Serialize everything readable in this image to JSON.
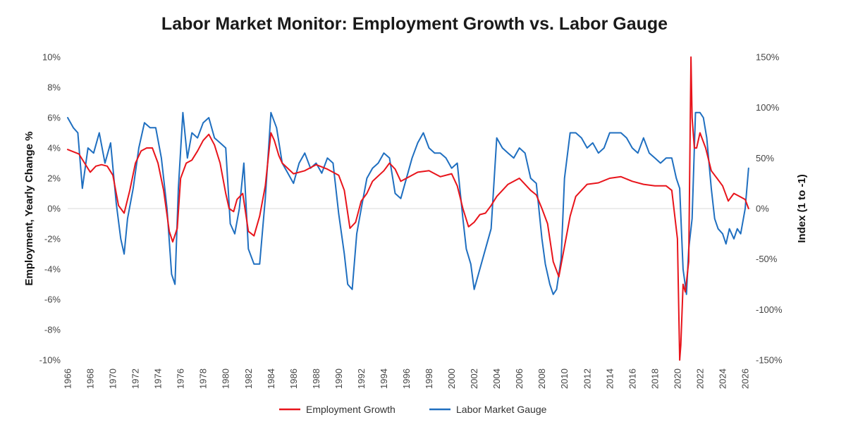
{
  "chart_data": {
    "type": "line",
    "title": "Labor Market Monitor: Employment Growth vs. Labor Gauge",
    "ylabel": "Employment, Yearly Change %",
    "y2label": "Index (1 to -1)",
    "ylim": [
      -10,
      10
    ],
    "y2lim": [
      -150,
      150
    ],
    "xlim": [
      1966,
      2026.5
    ],
    "grid": false,
    "legend_position": "bottom-center",
    "x_ticks": [
      "1966",
      "1968",
      "1970",
      "1972",
      "1974",
      "1976",
      "1978",
      "1980",
      "1982",
      "1984",
      "1986",
      "1988",
      "1990",
      "1992",
      "1994",
      "1996",
      "1998",
      "2000",
      "2002",
      "2004",
      "2006",
      "2008",
      "2010",
      "2012",
      "2014",
      "2016",
      "2018",
      "2020",
      "2022",
      "2024",
      "2026"
    ],
    "y_ticks": [
      "10%",
      "8%",
      "6%",
      "4%",
      "2%",
      "0%",
      "-2%",
      "-4%",
      "-6%",
      "-8%",
      "-10%"
    ],
    "y2_ticks": [
      "150%",
      "100%",
      "50%",
      "0%",
      "-50%",
      "-100%",
      "-150%"
    ],
    "series": [
      {
        "name": "Employment Growth",
        "axis": "left",
        "color": "#e8141b",
        "x": [
          1966.0,
          1967.0,
          1967.5,
          1968.0,
          1968.5,
          1969.0,
          1969.5,
          1970.0,
          1970.5,
          1971.0,
          1971.5,
          1972.0,
          1972.5,
          1973.0,
          1973.5,
          1974.0,
          1974.5,
          1975.0,
          1975.3,
          1975.7,
          1976.0,
          1976.5,
          1977.0,
          1977.5,
          1978.0,
          1978.5,
          1979.0,
          1979.5,
          1980.0,
          1980.3,
          1980.7,
          1981.0,
          1981.5,
          1982.0,
          1982.5,
          1983.0,
          1983.5,
          1984.0,
          1984.3,
          1984.7,
          1985.0,
          1986.0,
          1987.0,
          1988.0,
          1989.0,
          1990.0,
          1990.5,
          1991.0,
          1991.5,
          1992.0,
          1992.5,
          1993.0,
          1994.0,
          1994.5,
          1995.0,
          1995.5,
          1996.0,
          1997.0,
          1998.0,
          1999.0,
          2000.0,
          2000.5,
          2001.0,
          2001.5,
          2002.0,
          2002.5,
          2003.0,
          2003.5,
          2004.0,
          2005.0,
          2006.0,
          2006.5,
          2007.0,
          2007.5,
          2008.0,
          2008.5,
          2009.0,
          2009.5,
          2010.0,
          2010.5,
          2011.0,
          2012.0,
          2013.0,
          2014.0,
          2015.0,
          2016.0,
          2017.0,
          2018.0,
          2019.0,
          2019.5,
          2020.0,
          2020.2,
          2020.3,
          2020.5,
          2020.7,
          2021.0,
          2021.2,
          2021.3,
          2021.5,
          2021.7,
          2022.0,
          2022.5,
          2023.0,
          2023.5,
          2024.0,
          2024.5,
          2025.0,
          2025.5,
          2026.0,
          2026.3
        ],
        "values": [
          3.9,
          3.6,
          3.0,
          2.4,
          2.8,
          2.9,
          2.8,
          2.2,
          0.2,
          -0.3,
          1.2,
          3.0,
          3.8,
          4.0,
          4.0,
          3.0,
          1.2,
          -1.5,
          -2.2,
          -1.3,
          2.0,
          3.0,
          3.2,
          3.8,
          4.5,
          4.9,
          4.2,
          3.0,
          1.0,
          0.0,
          -0.2,
          0.6,
          1.0,
          -1.5,
          -1.8,
          -0.5,
          1.5,
          5.0,
          4.5,
          3.5,
          3.0,
          2.3,
          2.5,
          2.9,
          2.6,
          2.2,
          1.2,
          -1.3,
          -0.9,
          0.5,
          1.0,
          1.8,
          2.5,
          3.0,
          2.6,
          1.8,
          2.0,
          2.4,
          2.5,
          2.1,
          2.3,
          1.5,
          0.0,
          -1.2,
          -0.9,
          -0.4,
          -0.3,
          0.2,
          0.8,
          1.6,
          2.0,
          1.6,
          1.2,
          0.9,
          0.0,
          -1.0,
          -3.5,
          -4.5,
          -2.5,
          -0.5,
          0.8,
          1.6,
          1.7,
          2.0,
          2.1,
          1.8,
          1.6,
          1.5,
          1.5,
          1.2,
          -2.0,
          -10.0,
          -9.0,
          -5.0,
          -5.5,
          -3.5,
          10.0,
          6.0,
          4.0,
          4.0,
          5.0,
          4.0,
          2.5,
          2.0,
          1.5,
          0.5,
          1.0,
          0.8,
          0.6,
          0.0
        ]
      },
      {
        "name": "Labor Market Gauge",
        "axis": "right",
        "color": "#1f6fc0",
        "x": [
          1966.0,
          1966.5,
          1966.9,
          1967.3,
          1967.8,
          1968.3,
          1968.8,
          1969.3,
          1969.8,
          1970.3,
          1970.7,
          1971.0,
          1971.3,
          1971.8,
          1972.3,
          1972.8,
          1973.3,
          1973.8,
          1974.3,
          1974.8,
          1975.2,
          1975.5,
          1975.8,
          1976.2,
          1976.6,
          1977.0,
          1977.5,
          1978.0,
          1978.5,
          1979.0,
          1979.5,
          1980.0,
          1980.4,
          1980.8,
          1981.2,
          1981.6,
          1982.0,
          1982.5,
          1983.0,
          1983.5,
          1984.0,
          1984.5,
          1985.0,
          1985.5,
          1986.0,
          1986.5,
          1987.0,
          1987.5,
          1988.0,
          1988.5,
          1989.0,
          1989.5,
          1990.0,
          1990.5,
          1990.8,
          1991.2,
          1991.6,
          1992.0,
          1992.5,
          1993.0,
          1993.5,
          1994.0,
          1994.5,
          1995.0,
          1995.5,
          1996.0,
          1996.5,
          1997.0,
          1997.5,
          1998.0,
          1998.5,
          1999.0,
          1999.5,
          2000.0,
          2000.5,
          2001.0,
          2001.3,
          2001.7,
          2002.0,
          2002.5,
          2003.0,
          2003.5,
          2004.0,
          2004.5,
          2005.0,
          2005.5,
          2006.0,
          2006.5,
          2007.0,
          2007.5,
          2008.0,
          2008.3,
          2008.7,
          2009.0,
          2009.3,
          2009.7,
          2010.0,
          2010.5,
          2011.0,
          2011.5,
          2012.0,
          2012.5,
          2013.0,
          2013.5,
          2014.0,
          2014.5,
          2015.0,
          2015.5,
          2016.0,
          2016.5,
          2017.0,
          2017.5,
          2018.0,
          2018.5,
          2019.0,
          2019.5,
          2019.9,
          2020.2,
          2020.5,
          2020.8,
          2021.0,
          2021.3,
          2021.6,
          2022.0,
          2022.3,
          2022.6,
          2023.0,
          2023.3,
          2023.6,
          2024.0,
          2024.3,
          2024.6,
          2025.0,
          2025.3,
          2025.6,
          2026.0,
          2026.3
        ],
        "values": [
          90,
          80,
          75,
          20,
          60,
          55,
          75,
          45,
          65,
          5,
          -30,
          -45,
          -10,
          20,
          60,
          85,
          80,
          80,
          50,
          0,
          -65,
          -75,
          20,
          95,
          50,
          75,
          70,
          85,
          90,
          70,
          65,
          60,
          -15,
          -25,
          0,
          45,
          -40,
          -55,
          -55,
          10,
          95,
          80,
          45,
          35,
          25,
          45,
          55,
          40,
          45,
          35,
          50,
          45,
          -5,
          -45,
          -75,
          -80,
          -25,
          0,
          30,
          40,
          45,
          55,
          50,
          15,
          10,
          30,
          50,
          65,
          75,
          60,
          55,
          55,
          50,
          40,
          45,
          -10,
          -40,
          -55,
          -80,
          -60,
          -40,
          -20,
          70,
          60,
          55,
          50,
          60,
          55,
          30,
          25,
          -30,
          -55,
          -75,
          -85,
          -80,
          -50,
          30,
          75,
          75,
          70,
          60,
          65,
          55,
          60,
          75,
          75,
          75,
          70,
          60,
          55,
          70,
          55,
          50,
          45,
          50,
          50,
          30,
          20,
          -60,
          -85,
          -40,
          -10,
          95,
          95,
          90,
          70,
          20,
          -10,
          -20,
          -25,
          -35,
          -20,
          -30,
          -20,
          -25,
          0,
          40
        ]
      }
    ]
  }
}
